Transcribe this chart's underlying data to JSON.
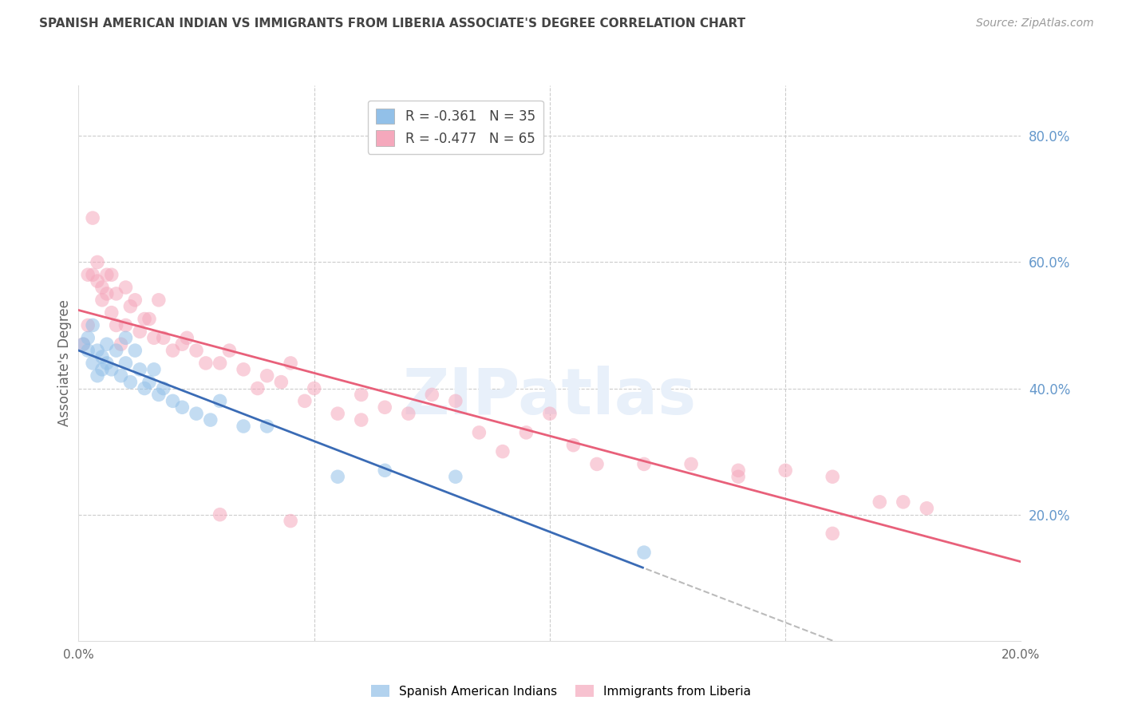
{
  "title": "SPANISH AMERICAN INDIAN VS IMMIGRANTS FROM LIBERIA ASSOCIATE'S DEGREE CORRELATION CHART",
  "source": "Source: ZipAtlas.com",
  "ylabel": "Associate's Degree",
  "watermark": "ZIPatlas",
  "xlim": [
    0.0,
    0.2
  ],
  "ylim": [
    0.0,
    0.88
  ],
  "yticks": [
    0.2,
    0.4,
    0.6,
    0.8
  ],
  "ytick_labels": [
    "20.0%",
    "40.0%",
    "60.0%",
    "80.0%"
  ],
  "blue_R": -0.361,
  "blue_N": 35,
  "pink_R": -0.477,
  "pink_N": 65,
  "blue_color": "#92C0E8",
  "pink_color": "#F5A8BC",
  "blue_line_color": "#3A6BB5",
  "pink_line_color": "#E8607A",
  "dashed_line_color": "#BBBBBB",
  "bg_color": "#FFFFFF",
  "grid_color": "#CCCCCC",
  "title_color": "#444444",
  "right_axis_color": "#6699CC",
  "watermark_color": "#E8F0FA",
  "blue_scatter_x": [
    0.001,
    0.002,
    0.002,
    0.003,
    0.003,
    0.004,
    0.004,
    0.005,
    0.005,
    0.006,
    0.006,
    0.007,
    0.008,
    0.009,
    0.01,
    0.01,
    0.011,
    0.012,
    0.013,
    0.014,
    0.015,
    0.016,
    0.017,
    0.018,
    0.02,
    0.022,
    0.025,
    0.028,
    0.03,
    0.035,
    0.04,
    0.055,
    0.065,
    0.08,
    0.12
  ],
  "blue_scatter_y": [
    0.47,
    0.48,
    0.46,
    0.5,
    0.44,
    0.46,
    0.42,
    0.45,
    0.43,
    0.47,
    0.44,
    0.43,
    0.46,
    0.42,
    0.48,
    0.44,
    0.41,
    0.46,
    0.43,
    0.4,
    0.41,
    0.43,
    0.39,
    0.4,
    0.38,
    0.37,
    0.36,
    0.35,
    0.38,
    0.34,
    0.34,
    0.26,
    0.27,
    0.26,
    0.14
  ],
  "pink_scatter_x": [
    0.001,
    0.002,
    0.002,
    0.003,
    0.003,
    0.004,
    0.004,
    0.005,
    0.005,
    0.006,
    0.006,
    0.007,
    0.007,
    0.008,
    0.008,
    0.009,
    0.01,
    0.01,
    0.011,
    0.012,
    0.013,
    0.014,
    0.015,
    0.016,
    0.017,
    0.018,
    0.02,
    0.022,
    0.023,
    0.025,
    0.027,
    0.03,
    0.032,
    0.035,
    0.038,
    0.04,
    0.043,
    0.045,
    0.048,
    0.05,
    0.055,
    0.06,
    0.065,
    0.07,
    0.075,
    0.08,
    0.085,
    0.09,
    0.095,
    0.1,
    0.105,
    0.11,
    0.12,
    0.13,
    0.14,
    0.15,
    0.16,
    0.17,
    0.175,
    0.18,
    0.03,
    0.045,
    0.06,
    0.14,
    0.16
  ],
  "pink_scatter_y": [
    0.47,
    0.58,
    0.5,
    0.67,
    0.58,
    0.6,
    0.57,
    0.56,
    0.54,
    0.58,
    0.55,
    0.52,
    0.58,
    0.5,
    0.55,
    0.47,
    0.5,
    0.56,
    0.53,
    0.54,
    0.49,
    0.51,
    0.51,
    0.48,
    0.54,
    0.48,
    0.46,
    0.47,
    0.48,
    0.46,
    0.44,
    0.44,
    0.46,
    0.43,
    0.4,
    0.42,
    0.41,
    0.44,
    0.38,
    0.4,
    0.36,
    0.39,
    0.37,
    0.36,
    0.39,
    0.38,
    0.33,
    0.3,
    0.33,
    0.36,
    0.31,
    0.28,
    0.28,
    0.28,
    0.26,
    0.27,
    0.26,
    0.22,
    0.22,
    0.21,
    0.2,
    0.19,
    0.35,
    0.27,
    0.17
  ]
}
